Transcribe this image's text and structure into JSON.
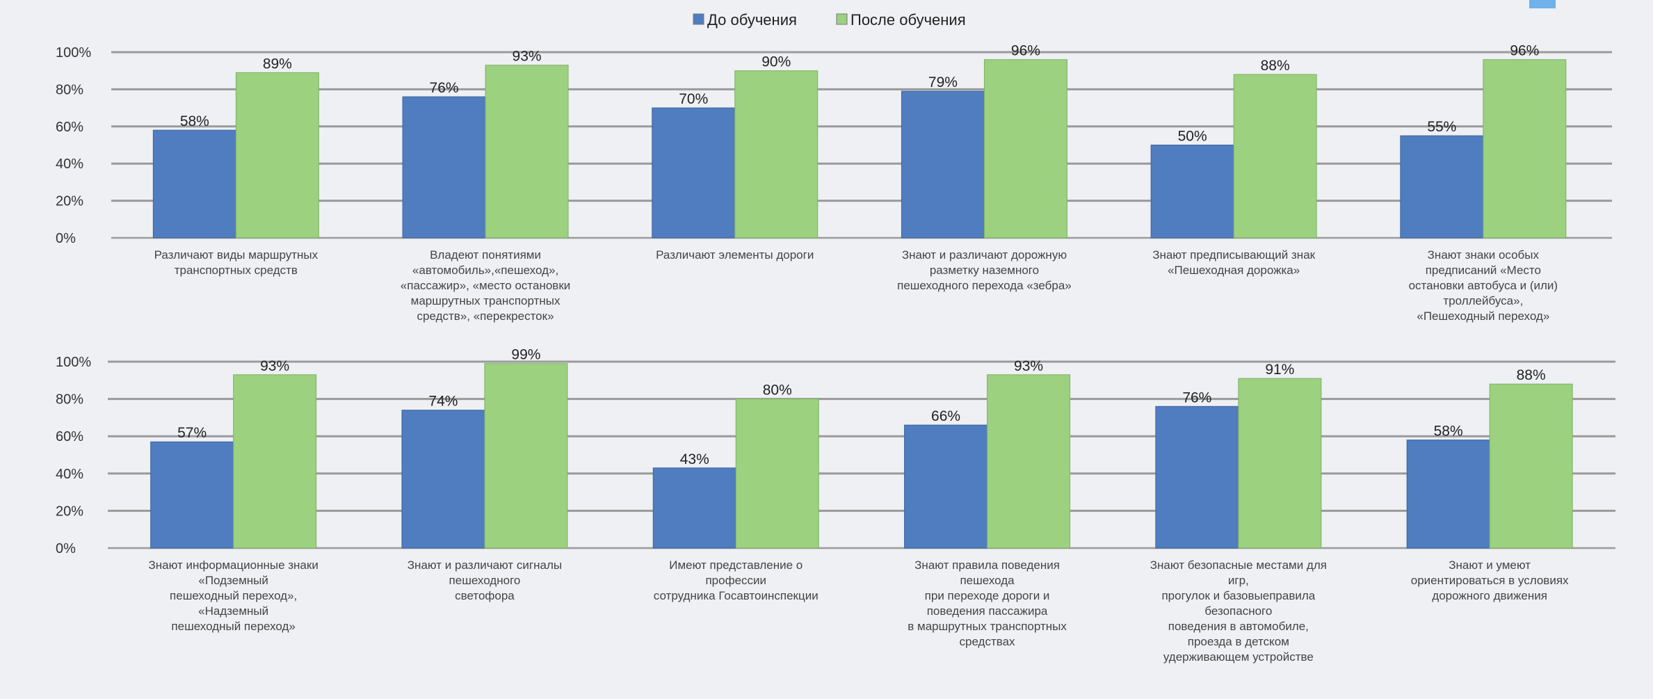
{
  "colors": {
    "before": "#4f7dbf",
    "after": "#9bd17f",
    "grid": "#9a9a9a",
    "background": "#eef0f4",
    "corner_badge": "#6fb1e8"
  },
  "chart_data": [
    {
      "type": "bar",
      "legend": {
        "placement": "top-center",
        "entries": [
          "До обучения",
          "После обучения"
        ]
      },
      "ylim": [
        0,
        100
      ],
      "yticks": [
        "0%",
        "20%",
        "40%",
        "60%",
        "80%",
        "100%"
      ],
      "grid": true,
      "categories": [
        [
          "Различают виды маршрутных",
          "транспортных средств"
        ],
        [
          "Владеют понятиями",
          "«автомобиль»,«пешеход»,",
          "«пассажир», «место остановки",
          "маршрутных транспортных",
          "средств», «перекресток»"
        ],
        [
          "Различают элементы дороги"
        ],
        [
          "Знают и различают дорожную",
          "разметку наземного",
          "пешеходного перехода «зебра»"
        ],
        [
          "Знают предписывающий знак",
          "«Пешеходная дорожка»"
        ],
        [
          "Знают знаки особых",
          "предписаний «Место",
          "остановки автобуса и (или)",
          "троллейбуса»,",
          "«Пешеходный переход»"
        ]
      ],
      "series": [
        {
          "name": "До обучения",
          "values": [
            58,
            76,
            70,
            79,
            50,
            55
          ],
          "labels": [
            "58%",
            "76%",
            "70%",
            "79%",
            "50%",
            "55%"
          ]
        },
        {
          "name": "После обучения",
          "values": [
            89,
            93,
            90,
            96,
            88,
            96
          ],
          "labels": [
            "89%",
            "93%",
            "90%",
            "96%",
            "88%",
            "96%"
          ]
        }
      ]
    },
    {
      "type": "bar",
      "ylim": [
        0,
        100
      ],
      "yticks": [
        "0%",
        "20%",
        "40%",
        "60%",
        "80%",
        "100%"
      ],
      "grid": true,
      "categories": [
        [
          "Знают информационные знаки",
          "«Подземный",
          "пешеходный переход»,",
          "«Надземный",
          "пешеходный переход»"
        ],
        [
          "Знают и различают сигналы",
          "пешеходного",
          "светофора"
        ],
        [
          "Имеют представление о",
          "профессии",
          "сотрудника Госавтоинспекции"
        ],
        [
          "Знают  правила поведения",
          "пешехода",
          "при переходе дороги и",
          "поведения пассажира",
          "в маршрутных транспортных",
          "средствах"
        ],
        [
          "Знают безопасные местами для",
          "игр,",
          "прогулок и базовыеправила",
          "безопасного",
          "поведения в автомобиле,",
          "проезда в детском",
          "удерживающем устройстве"
        ],
        [
          "Знают и умеют",
          "ориентироваться в условиях",
          "дорожного движения"
        ]
      ],
      "series": [
        {
          "name": "До обучения",
          "values": [
            57,
            74,
            43,
            66,
            76,
            58
          ],
          "labels": [
            "57%",
            "74%",
            "43%",
            "66%",
            "76%",
            "58%"
          ]
        },
        {
          "name": "После обучения",
          "values": [
            93,
            99,
            80,
            93,
            91,
            88
          ],
          "labels": [
            "93%",
            "99%",
            "80%",
            "93%",
            "91%",
            "88%"
          ]
        }
      ]
    }
  ]
}
